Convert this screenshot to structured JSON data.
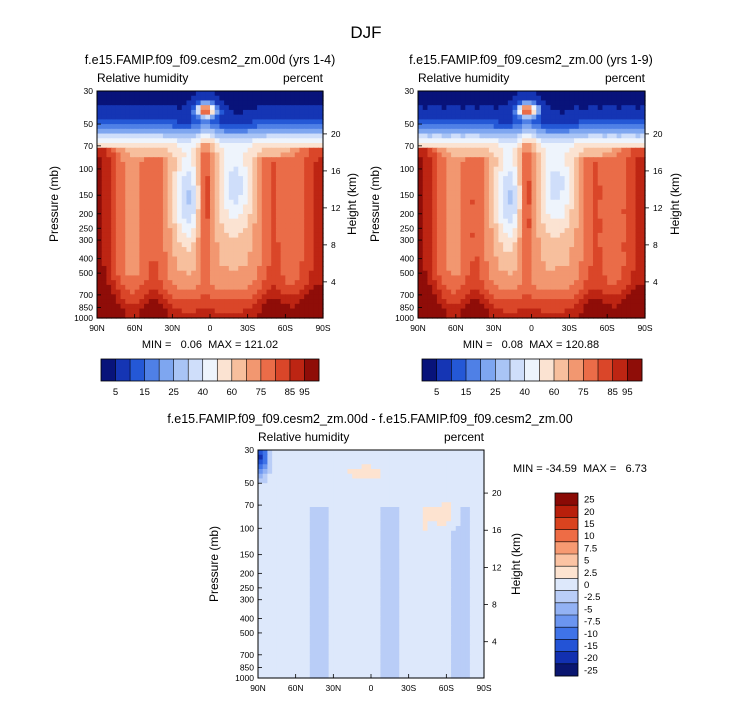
{
  "figure_title": "DJF",
  "variable_label": "Relative humidity",
  "units_label": "percent",
  "chart_data": [
    {
      "type": "heatmap",
      "title": "f.e15.FAMIP.f09_f09.cesm2_zm.00d (yrs 1-4)",
      "left_label": "Relative humidity",
      "right_label": "percent",
      "ylabel": "Pressure (mb)",
      "y2label": "Height (km)",
      "x_ticks": [
        "90N",
        "60N",
        "30N",
        "0",
        "30S",
        "60S",
        "90S"
      ],
      "y_ticks": [
        "30",
        "50",
        "70",
        "100",
        "150",
        "200",
        "250",
        "300",
        "400",
        "500",
        "700",
        "850",
        "1000"
      ],
      "y2_ticks": [
        "20",
        "16",
        "12",
        "8",
        "4"
      ],
      "stats_text": "MIN =   0.06  MAX = 121.02",
      "colorbar_levels": [
        "5",
        "15",
        "25",
        "40",
        "60",
        "75",
        "85",
        "95"
      ],
      "colorbar_orientation": "horizontal"
    },
    {
      "type": "heatmap",
      "title": "f.e15.FAMIP.f09_f09.cesm2_zm.00 (yrs 1-9)",
      "left_label": "Relative humidity",
      "right_label": "percent",
      "ylabel": "Pressure (mb)",
      "y2label": "Height (km)",
      "x_ticks": [
        "90N",
        "60N",
        "30N",
        "0",
        "30S",
        "60S",
        "90S"
      ],
      "y_ticks": [
        "30",
        "50",
        "70",
        "100",
        "150",
        "200",
        "250",
        "300",
        "400",
        "500",
        "700",
        "850",
        "1000"
      ],
      "y2_ticks": [
        "20",
        "16",
        "12",
        "8",
        "4"
      ],
      "stats_text": "MIN =   0.08  MAX = 120.88",
      "colorbar_levels": [
        "5",
        "15",
        "25",
        "40",
        "60",
        "75",
        "85",
        "95"
      ],
      "colorbar_orientation": "horizontal"
    },
    {
      "type": "heatmap",
      "title": "f.e15.FAMIP.f09_f09.cesm2_zm.00d - f.e15.FAMIP.f09_f09.cesm2_zm.00",
      "left_label": "Relative humidity",
      "right_label": "percent",
      "ylabel": "Pressure (mb)",
      "y2label": "Height (km)",
      "x_ticks": [
        "90N",
        "60N",
        "30N",
        "0",
        "30S",
        "60S",
        "90S"
      ],
      "y_ticks": [
        "30",
        "50",
        "70",
        "100",
        "150",
        "200",
        "250",
        "300",
        "400",
        "500",
        "700",
        "850",
        "1000"
      ],
      "y2_ticks": [
        "20",
        "16",
        "12",
        "8",
        "4"
      ],
      "stats_text": "MIN = -34.59  MAX =   6.73",
      "colorbar_levels": [
        "25",
        "20",
        "15",
        "10",
        "7.5",
        "5",
        "2.5",
        "0",
        "-2.5",
        "-5",
        "-7.5",
        "-10",
        "-15",
        "-20",
        "-25"
      ],
      "colorbar_orientation": "vertical"
    }
  ],
  "colormaps": {
    "abs": [
      "#08137a",
      "#1535b4",
      "#2458d6",
      "#4f80e6",
      "#7ea6f0",
      "#a9c4f5",
      "#cfdefa",
      "#eef4fc",
      "#fbe3d2",
      "#f7bf9d",
      "#f29770",
      "#ea6c48",
      "#da4629",
      "#bd2513",
      "#8f0d08"
    ],
    "diff": [
      "#0a1670",
      "#1230b0",
      "#2353d6",
      "#3f73e8",
      "#6b95f0",
      "#93b2f4",
      "#b9cdf7",
      "#dde8fb",
      "#fde3d0",
      "#fbc3a3",
      "#f79a72",
      "#ee6c45",
      "#d9431f",
      "#b81f0b",
      "#8a0a05"
    ]
  }
}
